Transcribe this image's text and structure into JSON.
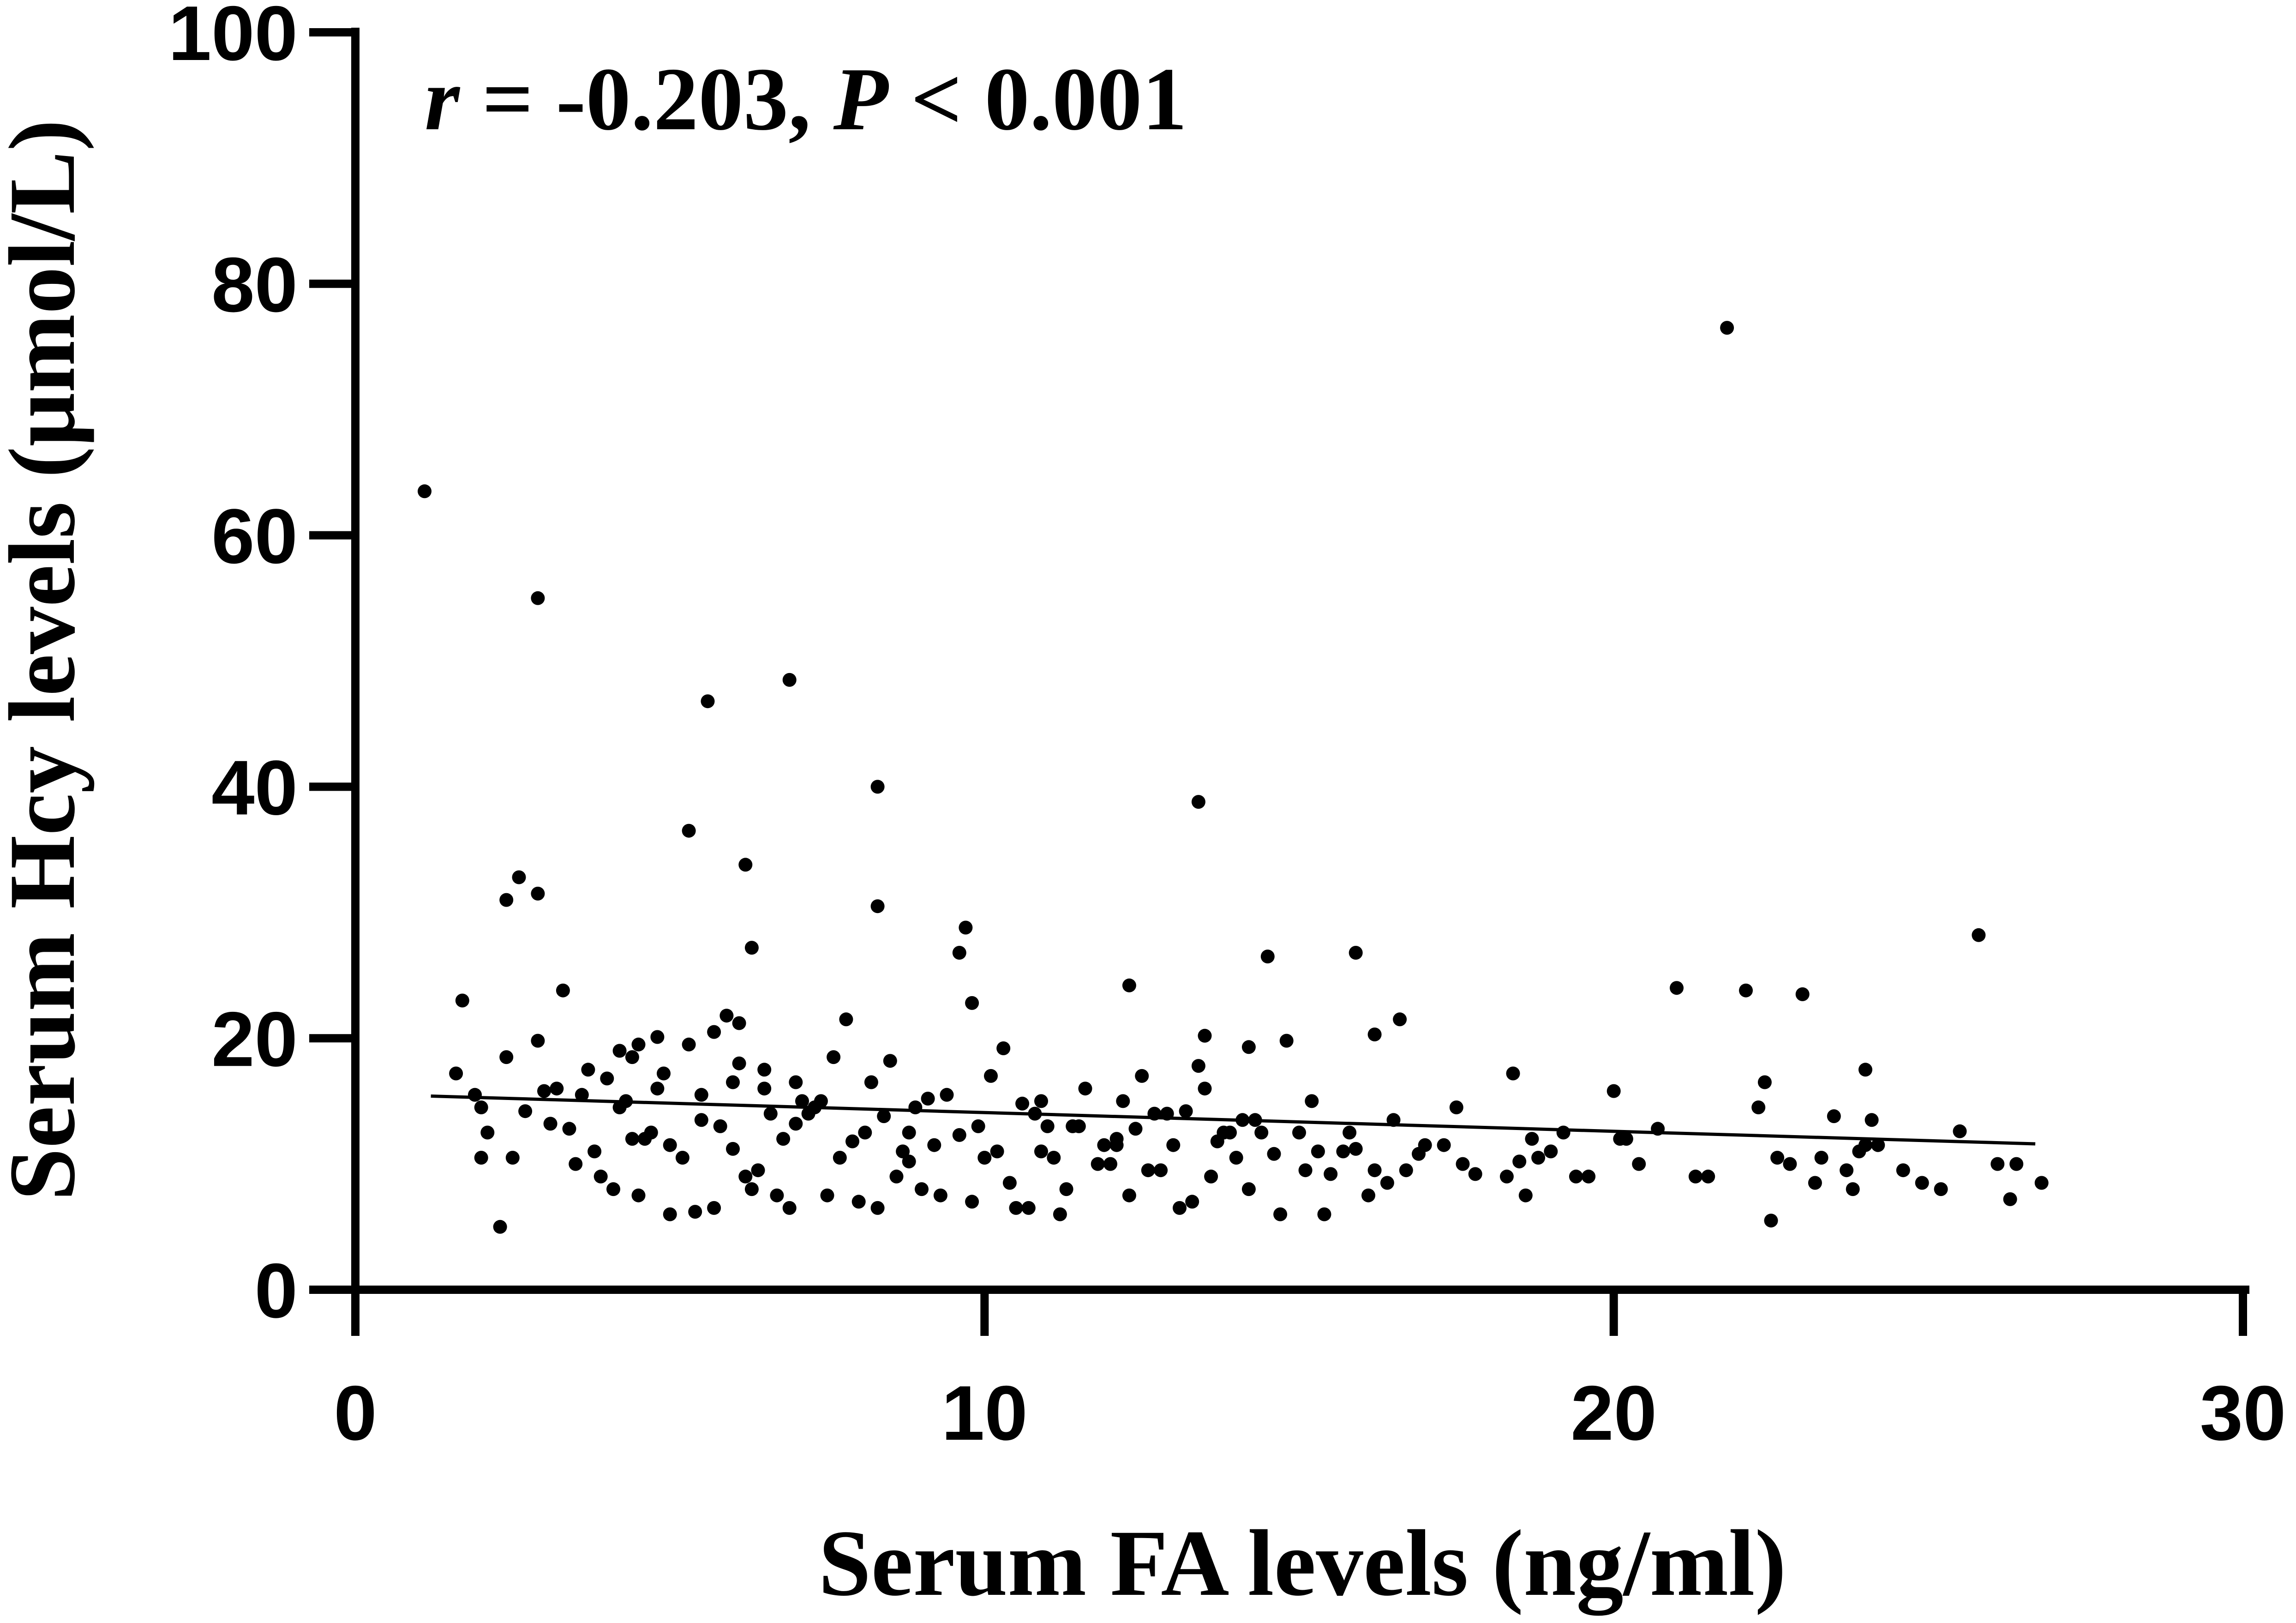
{
  "chart_data": {
    "type": "scatter",
    "title": "",
    "xlabel": "Serum FA levels (ng/ml)",
    "ylabel": "Serum Hcy levels (μmol/L)",
    "xlim": [
      0,
      30
    ],
    "ylim": [
      0,
      100
    ],
    "x_ticks": [
      "0",
      "10",
      "20",
      "30"
    ],
    "y_ticks": [
      "0",
      "20",
      "40",
      "60",
      "80",
      "100"
    ],
    "grid": false,
    "legend": "none",
    "annotation": {
      "r_symbol": "r",
      "r_text": " = -0.203, ",
      "p_symbol": "P",
      "p_text": " < 0.001"
    },
    "trendline": {
      "x": [
        1.2,
        26.7
      ],
      "y": [
        15.4,
        11.6
      ]
    },
    "points": {
      "x": [
        1.1,
        21.8,
        2.9,
        6.9,
        5.6,
        8.3,
        13.4,
        5.3,
        2.6,
        2.9,
        2.4,
        6.2,
        8.3,
        9.7,
        4.5,
        8.5,
        6.3,
        9.6,
        15.9,
        25.8,
        14.5,
        4.8,
        5.9,
        5.7,
        6.1,
        9.8,
        10.3,
        1.7,
        3.3,
        2.9,
        12.3,
        21.0,
        22.1,
        23.0,
        16.6,
        16.2,
        13.5,
        13.4,
        14.8,
        14.2,
        22.4,
        18.4,
        20.0,
        20.7,
        24.0,
        23.5,
        25.5,
        26.3,
        2.1,
        2.3,
        2.0,
        3.6,
        4.0,
        4.4,
        4.9,
        5.0,
        5.5,
        6.0,
        6.5,
        7.0,
        7.4,
        7.9,
        8.4,
        8.8,
        9.1,
        9.6,
        10.2,
        10.6,
        11.1,
        11.5,
        11.9,
        12.4,
        12.8,
        13.2,
        13.7,
        14.1,
        14.6,
        15.0,
        15.5,
        15.9,
        16.4,
        16.9,
        17.3,
        17.8,
        18.5,
        19.0,
        19.6,
        20.4,
        21.3,
        22.6,
        23.2,
        23.9,
        24.6,
        25.2,
        26.1,
        26.8,
        1.6,
        1.9,
        2.7,
        3.1,
        3.4,
        3.8,
        4.2,
        4.6,
        5.2,
        5.8,
        6.4,
        6.8,
        7.2,
        7.7,
        8.1,
        8.6,
        9.2,
        9.9,
        10.4,
        10.9,
        11.4,
        11.8,
        12.1,
        12.6,
        13.0,
        13.6,
        14.0,
        14.4,
        15.1,
        15.7,
        16.2,
        17.0,
        17.6,
        18.3,
        18.8,
        19.4,
        20.1,
        21.5,
        22.8,
        23.7,
        24.2,
        24.9,
        26.4,
        2.5,
        3.0,
        3.5,
        4.1,
        4.7,
        5.4,
        6.2,
        6.7,
        7.3,
        8.0,
        8.7,
        9.3,
        10.0,
        10.7,
        11.3,
        12.0,
        12.7,
        13.3,
        13.9,
        14.7,
        15.3,
        16.1,
        16.7,
        18.6,
        22.5,
        23.8,
        24.1,
        2.0,
        2.4,
        3.2,
        3.7,
        4.3,
        4.8,
        5.5,
        6.1,
        6.6,
        7.1,
        7.6,
        8.2,
        8.9,
        9.4,
        10.1,
        10.8,
        11.6,
        12.2,
        12.9,
        13.5,
        14.3,
        15.2,
        15.8,
        16.5,
        17.5,
        18.7,
        19.2,
        20.2,
        22.3,
        23.3,
        24.0,
        3.9,
        4.5,
        5.0,
        5.7,
        6.3,
        6.9,
        7.5,
        8.3,
        9.0,
        9.8,
        10.5,
        11.2,
        12.3,
        13.1,
        14.2,
        15.4,
        4.2,
        5.3,
        6.5,
        7.8,
        10.9,
        12.5,
        4.4,
        6.0,
        7.0,
        8.8,
        11.0,
        12.1,
        13.8
      ],
      "y": [
        63.5,
        76.5,
        55.0,
        48.5,
        46.8,
        40.0,
        38.8,
        36.5,
        32.8,
        31.5,
        31.0,
        33.8,
        30.5,
        28.8,
        19.5,
        18.2,
        27.2,
        26.8,
        26.8,
        28.2,
        26.5,
        20.1,
        21.8,
        20.5,
        21.2,
        22.8,
        19.2,
        23.0,
        23.8,
        19.8,
        24.2,
        24.0,
        23.8,
        23.5,
        21.5,
        20.3,
        20.2,
        17.8,
        19.8,
        19.3,
        16.5,
        17.2,
        15.8,
        12.8,
        17.5,
        13.8,
        12.6,
        7.2,
        12.5,
        5.0,
        10.5,
        15.5,
        16.8,
        18.5,
        17.2,
        11.5,
        13.5,
        11.2,
        16.0,
        13.2,
        15.0,
        11.8,
        13.8,
        10.2,
        15.2,
        12.3,
        11.0,
        14.8,
        10.5,
        13.0,
        11.5,
        12.8,
        9.5,
        14.2,
        11.8,
        13.5,
        10.8,
        12.5,
        9.2,
        11.2,
        8.5,
        10.8,
        11.5,
        9.2,
        10.2,
        11.0,
        9.0,
        10.0,
        9.0,
        10.5,
        8.5,
        11.0,
        9.5,
        8.0,
        10.0,
        8.5,
        17.2,
        15.5,
        14.2,
        13.2,
        12.8,
        11.0,
        14.5,
        12.0,
        10.5,
        13.0,
        9.5,
        12.0,
        14.0,
        10.5,
        12.5,
        9.0,
        11.5,
        13.0,
        8.5,
        11.0,
        13.0,
        10.0,
        12.0,
        9.5,
        11.5,
        9.0,
        10.5,
        12.5,
        9.5,
        11.0,
        9.5,
        11.5,
        10.0,
        9.0,
        10.5,
        9.0,
        12.0,
        9.0,
        10.0,
        9.5,
        11.5,
        8.5,
        10.0,
        10.5,
        15.8,
        10.0,
        8.0,
        12.5,
        6.2,
        9.0,
        7.5,
        14.5,
        7.0,
        11.0,
        7.5,
        10.5,
        6.5,
        8.0,
        10.0,
        14.0,
        7.0,
        12.5,
        6.0,
        11.0,
        7.5,
        9.5,
        7.5,
        5.5,
        8.0,
        13.5,
        14.5,
        18.5,
        16.0,
        17.5,
        15.0,
        16.0,
        15.5,
        18.0,
        14.0,
        15.0,
        18.5,
        16.5,
        14.5,
        15.5,
        17.0,
        14.0,
        16.0,
        15.0,
        14.0,
        16.0,
        13.5,
        15.0,
        12.5,
        13.5,
        14.5,
        12.0,
        12.5,
        12.0,
        14.5,
        10.5,
        11.5,
        9.0,
        7.5,
        6.0,
        6.5,
        8.0,
        6.5,
        7.5,
        6.5,
        8.0,
        7.0,
        6.5,
        6.0,
        7.5,
        6.5,
        8.0,
        6.0,
        19.0,
        19.5,
        17.5,
        21.5,
        15.0,
        17.0,
        12.0,
        16.5,
        16.5,
        12.5,
        13.0,
        11.5,
        12.5
      ]
    }
  }
}
